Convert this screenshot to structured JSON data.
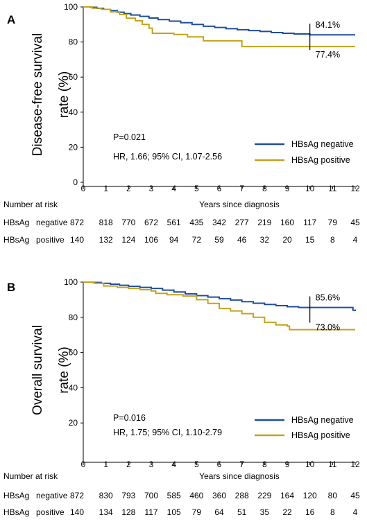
{
  "colors": {
    "negative": "#1f4e9c",
    "positive": "#c4a21b",
    "axis": "#000000"
  },
  "chart_data": [
    {
      "type": "line",
      "panel": "A",
      "ylabel_line1": "Disease-free survival",
      "ylabel_line2": "rate (%)",
      "xlabel": "Years since diagnosis",
      "xlim": [
        0,
        12
      ],
      "ylim": [
        0,
        100
      ],
      "yticks": [
        0,
        20,
        40,
        60,
        80,
        100
      ],
      "xticks": [
        0,
        1,
        2,
        3,
        4,
        5,
        6,
        7,
        8,
        9,
        10,
        11,
        12
      ],
      "p_text": "P=0.021",
      "hr_text": "HR, 1.66; 95% CI, 1.07-2.56",
      "marker_x": 10,
      "end_label_negative": "84.1%",
      "end_label_positive": "77.4%",
      "series": [
        {
          "name": "HBsAg negative",
          "color_key": "negative",
          "x": [
            0,
            0.3,
            0.6,
            0.9,
            1.2,
            1.5,
            1.8,
            2.1,
            2.5,
            2.9,
            3.3,
            3.8,
            4.3,
            4.8,
            5.3,
            5.8,
            6.3,
            6.8,
            7.3,
            7.8,
            8.3,
            8.8,
            9.3,
            10,
            11,
            12
          ],
          "y": [
            100,
            99.8,
            99.2,
            98.6,
            97.9,
            97,
            96.2,
            95.4,
            94.6,
            93.7,
            92.8,
            91.9,
            91,
            90,
            89,
            88.3,
            87.6,
            87,
            86.5,
            86,
            85.4,
            85,
            84.6,
            84.1,
            84.1,
            84.1
          ]
        },
        {
          "name": "HBsAg positive",
          "color_key": "positive",
          "x": [
            0,
            0.4,
            0.8,
            1.2,
            1.6,
            1.9,
            2.3,
            2.6,
            2.9,
            3.05,
            3.5,
            4,
            4.6,
            5.3,
            6.8,
            7,
            8,
            9,
            10,
            11,
            12
          ],
          "y": [
            100,
            99.3,
            98.6,
            97.2,
            95.7,
            93.6,
            92.1,
            90,
            87.9,
            85,
            85,
            84.3,
            82.9,
            80.7,
            80.7,
            77.4,
            77.4,
            77.4,
            77.4,
            77.4,
            77.4
          ]
        }
      ]
    },
    {
      "type": "line",
      "panel": "B",
      "ylabel_line1": "Overall survival",
      "ylabel_line2": "rate (%)",
      "xlabel": "Years since diagnosis",
      "xlim": [
        0,
        12
      ],
      "ylim": [
        0,
        100
      ],
      "yticks": [
        20,
        40,
        60,
        80,
        100
      ],
      "xticks": [
        0,
        1,
        2,
        3,
        4,
        5,
        6,
        7,
        8,
        9,
        10,
        11,
        12
      ],
      "p_text": "P=0.016",
      "hr_text": "HR, 1.75; 95% CI, 1.10-2.79",
      "marker_x": 10,
      "end_label_negative": "85.6%",
      "end_label_positive": "73.0%",
      "series": [
        {
          "name": "HBsAg negative",
          "color_key": "negative",
          "x": [
            0,
            0.4,
            0.8,
            1.2,
            1.6,
            2,
            2.5,
            3,
            3.5,
            4,
            4.5,
            5,
            5.5,
            6,
            6.5,
            7,
            7.5,
            8,
            8.5,
            9,
            9.5,
            10,
            11,
            11.9,
            12
          ],
          "y": [
            100,
            99.8,
            99.3,
            98.8,
            98.2,
            97.6,
            97,
            96.4,
            95.4,
            94.4,
            93.3,
            92.3,
            91.5,
            90.6,
            89.8,
            88.9,
            88,
            87.3,
            86.6,
            86,
            85.6,
            85.6,
            85.6,
            84,
            83.5
          ]
        },
        {
          "name": "HBsAg positive",
          "color_key": "positive",
          "x": [
            0,
            0.5,
            0.9,
            1.5,
            2,
            2.5,
            3,
            3.2,
            3.7,
            4.4,
            5,
            5.5,
            6,
            6.5,
            7,
            7.5,
            8,
            8.5,
            9,
            9.1,
            10,
            11,
            12
          ],
          "y": [
            100,
            99.3,
            97.8,
            97,
            96.4,
            95.7,
            95,
            93.6,
            92.8,
            92.1,
            90,
            87.9,
            85,
            83.6,
            82.1,
            80,
            77.1,
            75.7,
            75,
            73,
            73,
            73,
            73
          ]
        }
      ]
    }
  ],
  "risk_tables": [
    {
      "title": "Number at risk",
      "rows": [
        {
          "label1": "HBsAg",
          "label2": "negative",
          "values": [
            "872",
            "818",
            "770",
            "672",
            "561",
            "435",
            "342",
            "277",
            "219",
            "160",
            "117",
            "79",
            "45"
          ]
        },
        {
          "label1": "HBsAg",
          "label2": "positive",
          "values": [
            "140",
            "132",
            "124",
            "106",
            "94",
            "72",
            "59",
            "46",
            "32",
            "20",
            "15",
            "8",
            "4"
          ]
        }
      ]
    },
    {
      "title": "Number at risk",
      "rows": [
        {
          "label1": "HBsAg",
          "label2": "negative",
          "values": [
            "872",
            "830",
            "793",
            "700",
            "585",
            "460",
            "360",
            "288",
            "229",
            "164",
            "120",
            "80",
            "45"
          ]
        },
        {
          "label1": "HBsAg",
          "label2": "positive",
          "values": [
            "140",
            "134",
            "128",
            "117",
            "105",
            "79",
            "64",
            "51",
            "35",
            "22",
            "16",
            "8",
            "4"
          ]
        }
      ]
    }
  ]
}
